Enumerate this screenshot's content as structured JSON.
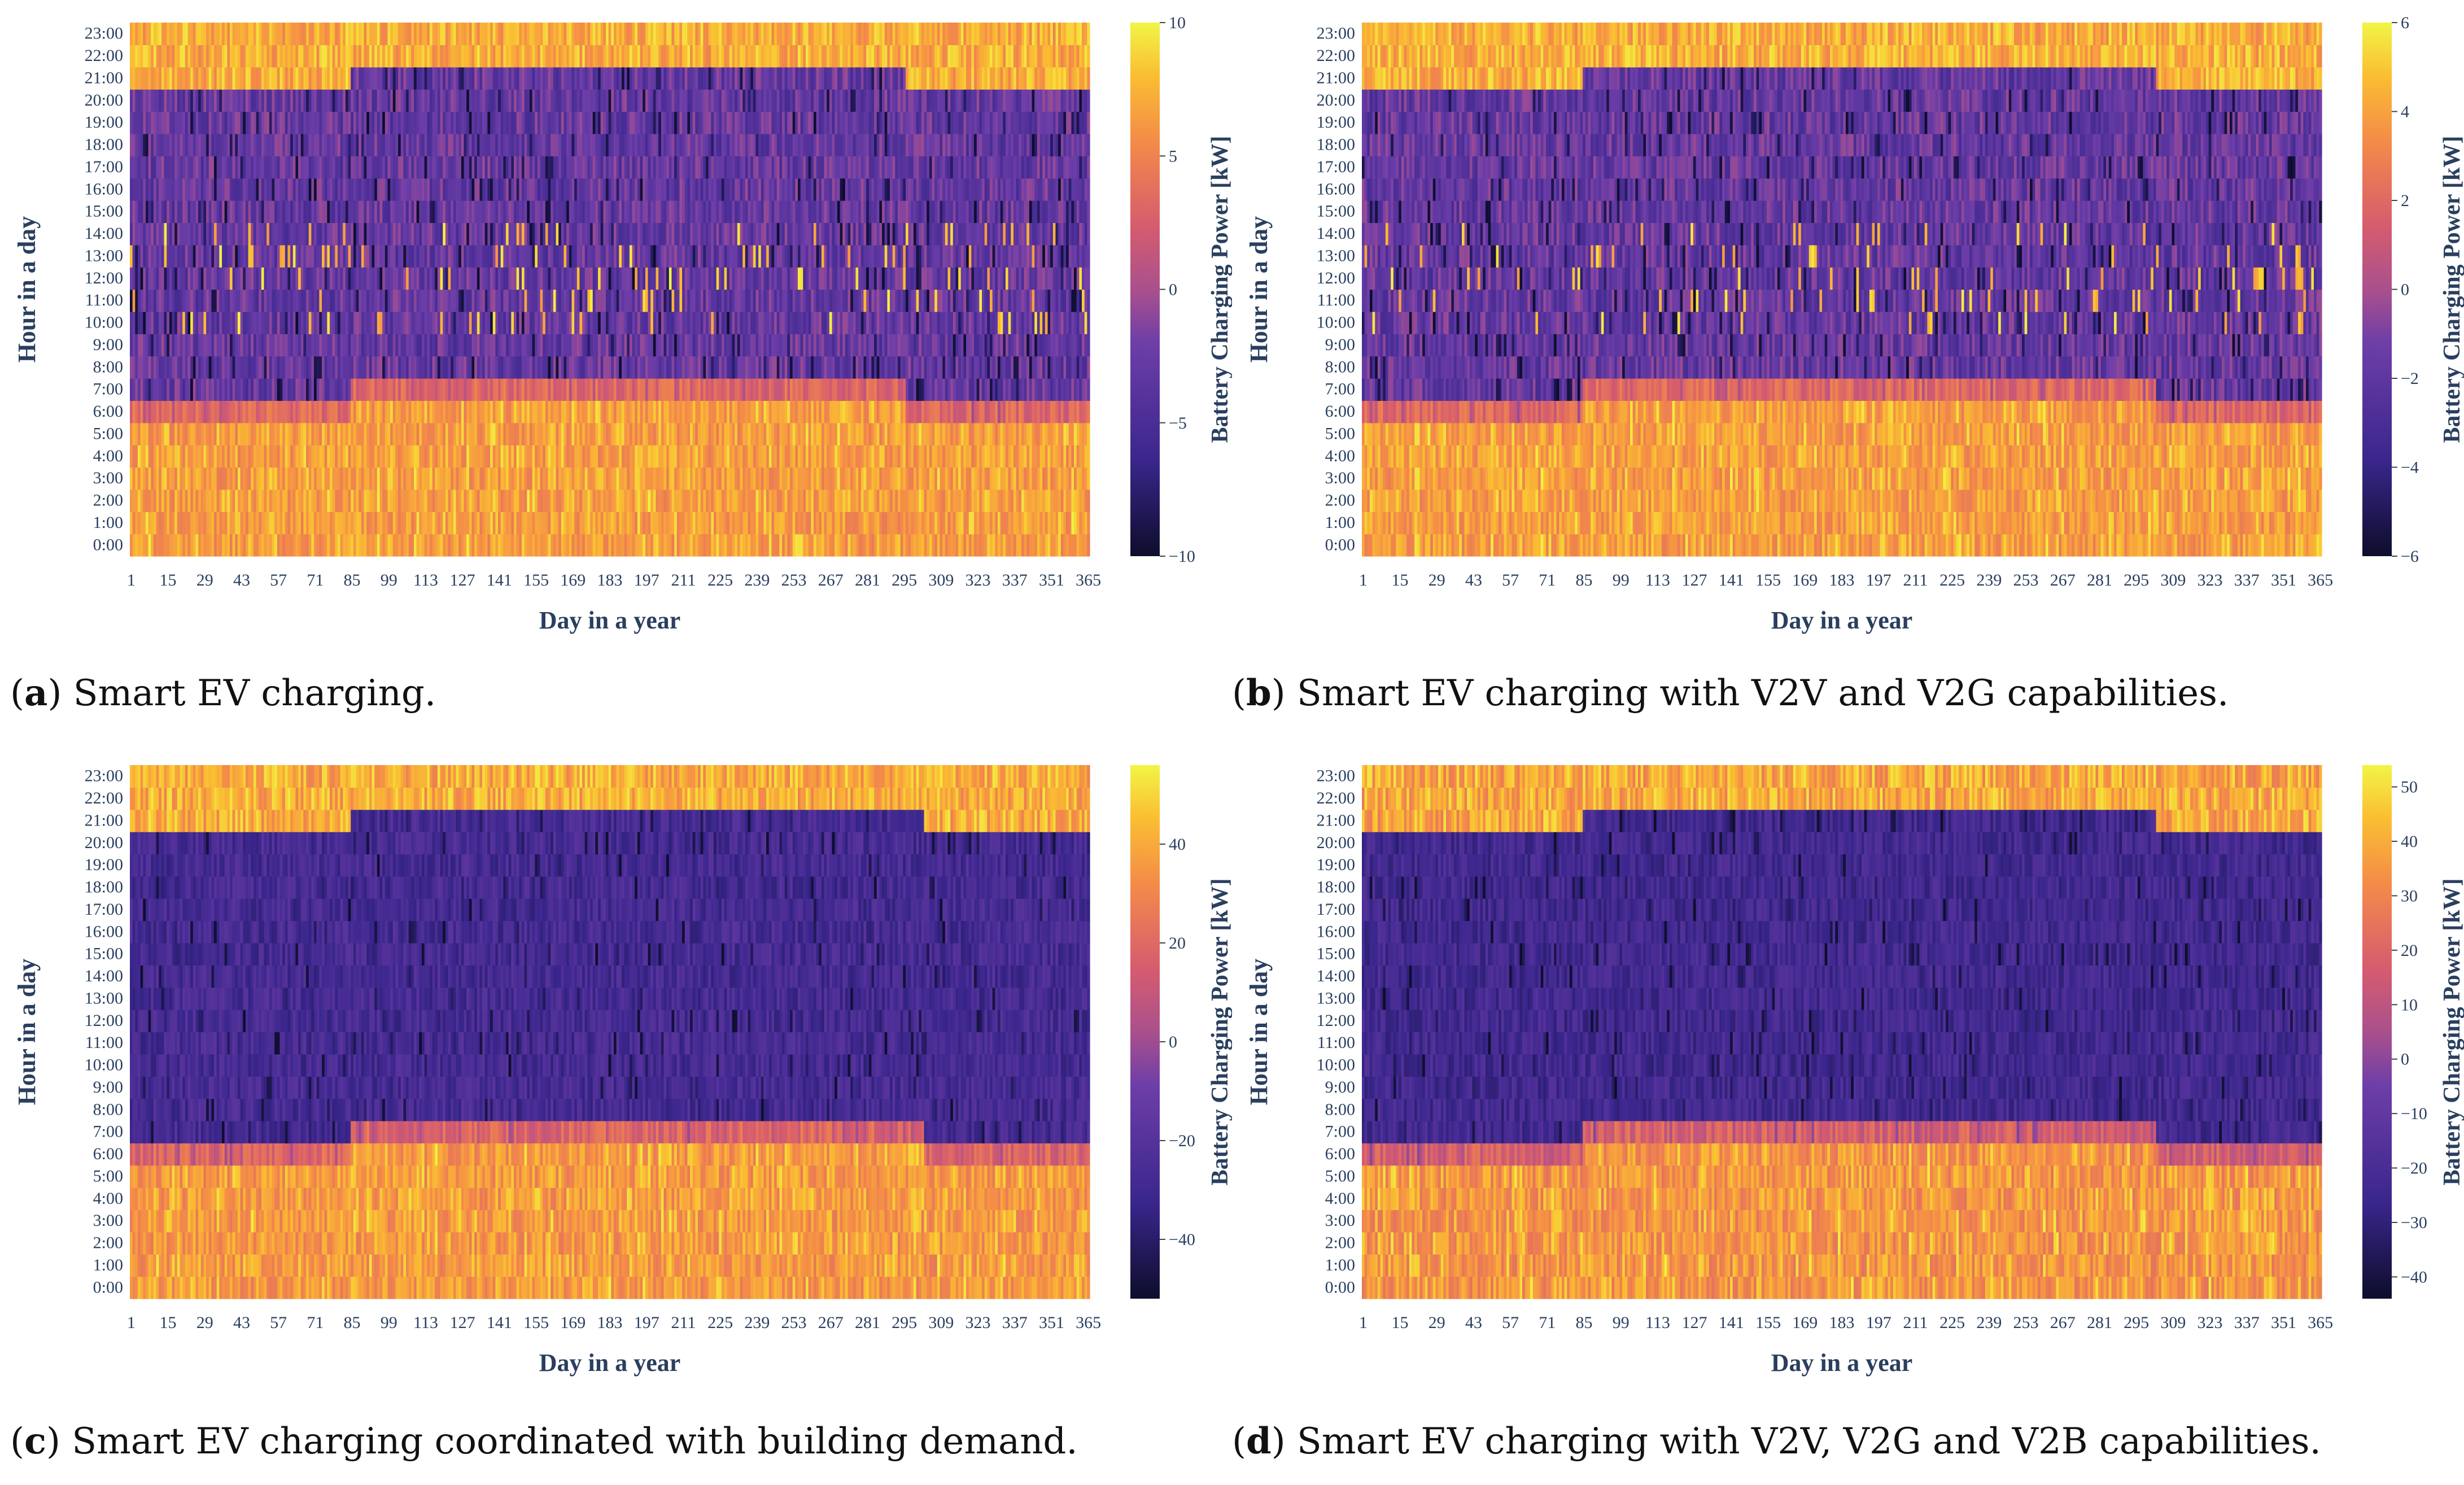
{
  "chart_data": [
    {
      "id": "a",
      "type": "heatmap",
      "caption_letter": "a",
      "caption_text": ") Smart EV charging.",
      "xlabel": "Day in a year",
      "ylabel": "Hour in a day",
      "colorbar_title": "Battery Charging Power [kW]",
      "x_ticks": [
        "1",
        "15",
        "29",
        "43",
        "57",
        "71",
        "85",
        "99",
        "113",
        "127",
        "141",
        "155",
        "169",
        "183",
        "197",
        "211",
        "225",
        "239",
        "253",
        "267",
        "281",
        "295",
        "309",
        "323",
        "337",
        "351",
        "365"
      ],
      "y_ticks": [
        "0:00",
        "1:00",
        "2:00",
        "3:00",
        "4:00",
        "5:00",
        "6:00",
        "7:00",
        "8:00",
        "9:00",
        "10:00",
        "11:00",
        "12:00",
        "13:00",
        "14:00",
        "15:00",
        "16:00",
        "17:00",
        "18:00",
        "19:00",
        "20:00",
        "21:00",
        "22:00",
        "23:00"
      ],
      "colorbar_range": [
        -10,
        10
      ],
      "colorbar_ticks": [
        "10",
        "5",
        "0",
        "−5",
        "−10"
      ],
      "colorbar_tick_values": [
        10,
        5,
        0,
        -5,
        -10
      ],
      "x_range": [
        1,
        365
      ],
      "y_range": [
        0,
        23
      ],
      "dst_days": [
        85,
        295
      ],
      "pattern": "mixed"
    },
    {
      "id": "b",
      "type": "heatmap",
      "caption_letter": "b",
      "caption_text": ") Smart EV charging with V2V and V2G capabilities.",
      "xlabel": "Day in a year",
      "ylabel": "Hour in a day",
      "colorbar_title": "Battery Charging Power [kW]",
      "x_ticks": [
        "1",
        "15",
        "29",
        "43",
        "57",
        "71",
        "85",
        "99",
        "113",
        "127",
        "141",
        "155",
        "169",
        "183",
        "197",
        "211",
        "225",
        "239",
        "253",
        "267",
        "281",
        "295",
        "309",
        "323",
        "337",
        "351",
        "365"
      ],
      "y_ticks": [
        "0:00",
        "1:00",
        "2:00",
        "3:00",
        "4:00",
        "5:00",
        "6:00",
        "7:00",
        "8:00",
        "9:00",
        "10:00",
        "11:00",
        "12:00",
        "13:00",
        "14:00",
        "15:00",
        "16:00",
        "17:00",
        "18:00",
        "19:00",
        "20:00",
        "21:00",
        "22:00",
        "23:00"
      ],
      "colorbar_range": [
        -6,
        6
      ],
      "colorbar_ticks": [
        "6",
        "4",
        "2",
        "0",
        "−2",
        "−4",
        "−6"
      ],
      "colorbar_tick_values": [
        6,
        4,
        2,
        0,
        -2,
        -4,
        -6
      ],
      "x_range": [
        1,
        365
      ],
      "y_range": [
        0,
        23
      ],
      "dst_days": [
        85,
        302
      ],
      "pattern": "mixed"
    },
    {
      "id": "c",
      "type": "heatmap",
      "caption_letter": "c",
      "caption_text": ") Smart EV charging coordinated with building demand.",
      "xlabel": "Day in a year",
      "ylabel": "Hour in a day",
      "colorbar_title": "Battery Charging Power [kW]",
      "x_ticks": [
        "1",
        "15",
        "29",
        "43",
        "57",
        "71",
        "85",
        "99",
        "113",
        "127",
        "141",
        "155",
        "169",
        "183",
        "197",
        "211",
        "225",
        "239",
        "253",
        "267",
        "281",
        "295",
        "309",
        "323",
        "337",
        "351",
        "365"
      ],
      "y_ticks": [
        "0:00",
        "1:00",
        "2:00",
        "3:00",
        "4:00",
        "5:00",
        "6:00",
        "7:00",
        "8:00",
        "9:00",
        "10:00",
        "11:00",
        "12:00",
        "13:00",
        "14:00",
        "15:00",
        "16:00",
        "17:00",
        "18:00",
        "19:00",
        "20:00",
        "21:00",
        "22:00",
        "23:00"
      ],
      "colorbar_range": [
        -52,
        56
      ],
      "colorbar_ticks": [
        "40",
        "20",
        "0",
        "−20",
        "−40"
      ],
      "colorbar_tick_values": [
        40,
        20,
        0,
        -20,
        -40
      ],
      "x_range": [
        1,
        365
      ],
      "y_range": [
        0,
        23
      ],
      "dst_days": [
        85,
        302
      ],
      "pattern": "blocky"
    },
    {
      "id": "d",
      "type": "heatmap",
      "caption_letter": "d",
      "caption_text": ") Smart EV charging with V2V, V2G and V2B capabilities.",
      "xlabel": "Day in a year",
      "ylabel": "Hour in a day",
      "colorbar_title": "Battery Charging Power [kW]",
      "x_ticks": [
        "1",
        "15",
        "29",
        "43",
        "57",
        "71",
        "85",
        "99",
        "113",
        "127",
        "141",
        "155",
        "169",
        "183",
        "197",
        "211",
        "225",
        "239",
        "253",
        "267",
        "281",
        "295",
        "309",
        "323",
        "337",
        "351",
        "365"
      ],
      "y_ticks": [
        "0:00",
        "1:00",
        "2:00",
        "3:00",
        "4:00",
        "5:00",
        "6:00",
        "7:00",
        "8:00",
        "9:00",
        "10:00",
        "11:00",
        "12:00",
        "13:00",
        "14:00",
        "15:00",
        "16:00",
        "17:00",
        "18:00",
        "19:00",
        "20:00",
        "21:00",
        "22:00",
        "23:00"
      ],
      "colorbar_range": [
        -44,
        54
      ],
      "colorbar_ticks": [
        "50",
        "40",
        "30",
        "20",
        "10",
        "0",
        "−10",
        "−20",
        "−30",
        "−40"
      ],
      "colorbar_tick_values": [
        50,
        40,
        30,
        20,
        10,
        0,
        -10,
        -20,
        -30,
        -40
      ],
      "x_range": [
        1,
        365
      ],
      "y_range": [
        0,
        23
      ],
      "dst_days": [
        85,
        302
      ],
      "pattern": "blocky"
    }
  ]
}
